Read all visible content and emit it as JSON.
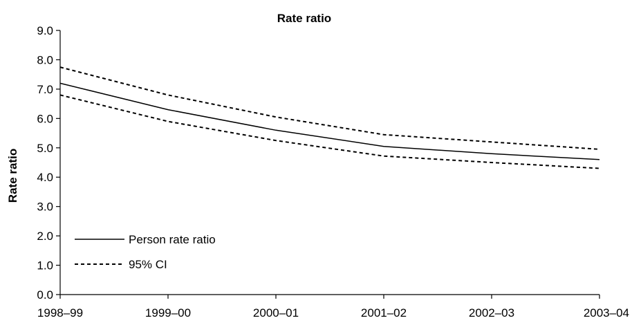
{
  "chart_data": {
    "type": "line",
    "title": "Rate ratio",
    "xlabel": "",
    "ylabel": "Rate ratio",
    "categories": [
      "1998–99",
      "1999–00",
      "2000–01",
      "2001–02",
      "2002–03",
      "2003–04"
    ],
    "ylim": [
      0,
      9
    ],
    "yticks": [
      "0.0",
      "1.0",
      "2.0",
      "3.0",
      "4.0",
      "5.0",
      "6.0",
      "7.0",
      "8.0",
      "9.0"
    ],
    "grid": false,
    "legend_position": "bottom-left",
    "series": [
      {
        "name": "Person rate ratio",
        "style": "solid",
        "color": "#000000",
        "values": [
          7.2,
          6.3,
          5.6,
          5.05,
          4.8,
          4.6
        ]
      },
      {
        "name": "95% CI",
        "style": "dashed",
        "color": "#000000",
        "values": [
          7.75,
          6.8,
          6.05,
          5.45,
          5.2,
          4.95
        ]
      },
      {
        "style": "dashed",
        "color": "#000000",
        "values": [
          6.8,
          5.9,
          5.25,
          4.72,
          4.5,
          4.3
        ]
      }
    ]
  }
}
